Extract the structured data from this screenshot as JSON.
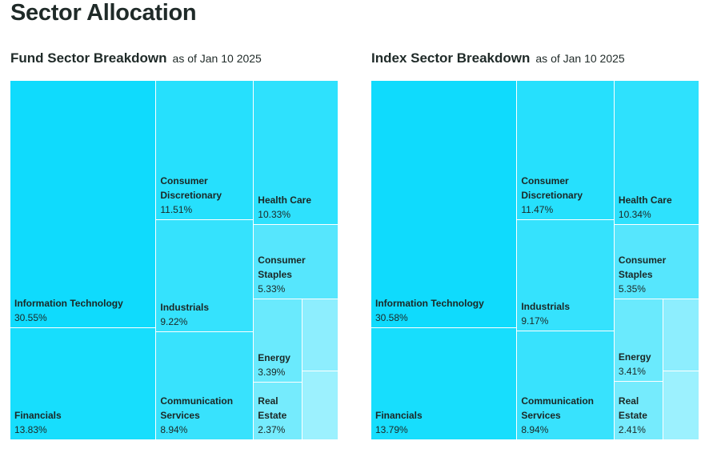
{
  "title": "Sector Allocation",
  "chart_data": [
    {
      "type": "treemap",
      "title": "Fund Sector Breakdown",
      "subtitle": "as of Jan 10 2025",
      "sectors": [
        {
          "name": "Information Technology",
          "value": 30.55,
          "value_label": "30.55%",
          "color": "#0fdbfd"
        },
        {
          "name": "Financials",
          "value": 13.83,
          "value_label": "13.83%",
          "color": "#17defd"
        },
        {
          "name": "Consumer Discretionary",
          "value": 11.51,
          "value_label": "11.51%",
          "color": "#26e0fd"
        },
        {
          "name": "Industrials",
          "value": 9.22,
          "value_label": "9.22%",
          "color": "#35e2fd"
        },
        {
          "name": "Communication Services",
          "value": 8.94,
          "value_label": "8.94%",
          "color": "#38e2fd"
        },
        {
          "name": "Health Care",
          "value": 10.33,
          "value_label": "10.33%",
          "color": "#2ee1fd"
        },
        {
          "name": "Consumer Staples",
          "value": 5.33,
          "value_label": "5.33%",
          "color": "#56e6fd"
        },
        {
          "name": "Energy",
          "value": 3.39,
          "value_label": "3.39%",
          "color": "#6aeafd"
        },
        {
          "name": "Real Estate",
          "value": 2.37,
          "value_label": "2.37%",
          "color": "#75ebfd"
        },
        {
          "name": "",
          "value": 2.2,
          "value_label": "",
          "color": "#8deefe"
        },
        {
          "name": "",
          "value": 2.1,
          "value_label": "",
          "color": "#9cf1fe"
        }
      ]
    },
    {
      "type": "treemap",
      "title": "Index Sector Breakdown",
      "subtitle": "as of Jan 10 2025",
      "sectors": [
        {
          "name": "Information Technology",
          "value": 30.58,
          "value_label": "30.58%",
          "color": "#0fdbfd"
        },
        {
          "name": "Financials",
          "value": 13.79,
          "value_label": "13.79%",
          "color": "#17defd"
        },
        {
          "name": "Consumer Discretionary",
          "value": 11.47,
          "value_label": "11.47%",
          "color": "#26e0fd"
        },
        {
          "name": "Industrials",
          "value": 9.17,
          "value_label": "9.17%",
          "color": "#35e2fd"
        },
        {
          "name": "Communication Services",
          "value": 8.94,
          "value_label": "8.94%",
          "color": "#38e2fd"
        },
        {
          "name": "Health Care",
          "value": 10.34,
          "value_label": "10.34%",
          "color": "#2ee1fd"
        },
        {
          "name": "Consumer Staples",
          "value": 5.35,
          "value_label": "5.35%",
          "color": "#56e6fd"
        },
        {
          "name": "Energy",
          "value": 3.41,
          "value_label": "3.41%",
          "color": "#6aeafd"
        },
        {
          "name": "Real Estate",
          "value": 2.41,
          "value_label": "2.41%",
          "color": "#75ebfd"
        },
        {
          "name": "",
          "value": 2.2,
          "value_label": "",
          "color": "#8deefe"
        },
        {
          "name": "",
          "value": 2.1,
          "value_label": "",
          "color": "#9cf1fe"
        }
      ]
    }
  ]
}
